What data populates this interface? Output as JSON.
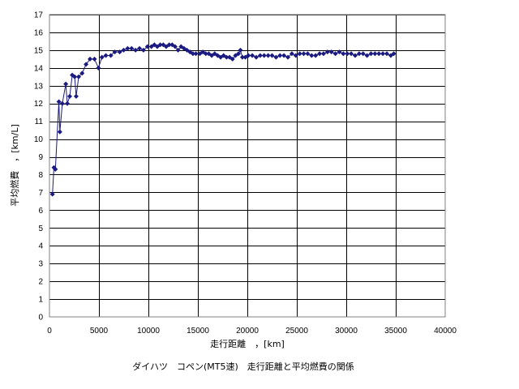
{
  "chart_data": {
    "type": "line",
    "title": "",
    "caption": "ダイハツ　コペン(MT5速)　走行距離と平均燃費の関係",
    "xlabel": "走行距離　，[km]",
    "ylabel": "平均燃費　，[km/L]",
    "xlim": [
      0,
      40000
    ],
    "ylim": [
      0,
      17
    ],
    "xticks": [
      0,
      5000,
      10000,
      15000,
      20000,
      25000,
      30000,
      35000,
      40000
    ],
    "yticks": [
      0,
      1,
      2,
      3,
      4,
      5,
      6,
      7,
      8,
      9,
      10,
      11,
      12,
      13,
      14,
      15,
      16,
      17
    ],
    "grid": true,
    "legend": "none",
    "marker": "diamond",
    "color": "#1a1a80",
    "series": [
      {
        "x": [
          300,
          450,
          600,
          950,
          1050,
          1300,
          1650,
          1800,
          2050,
          2300,
          2550,
          2700,
          2950,
          3300,
          3700,
          4100,
          4550,
          4950,
          5300,
          5700,
          6200,
          6600,
          7100,
          7500,
          7900,
          8300,
          8700,
          9100,
          9500,
          9900,
          10300,
          10600,
          10900,
          11200,
          11500,
          11800,
          12100,
          12400,
          12700,
          13000,
          13300,
          13600,
          13900,
          14200,
          14500,
          14800,
          15200,
          15500,
          15800,
          16100,
          16400,
          16700,
          17000,
          17300,
          17600,
          17900,
          18200,
          18500,
          18800,
          19100,
          19300,
          19500,
          19800,
          20100,
          20500,
          20900,
          21300,
          21700,
          22100,
          22500,
          22900,
          23300,
          23700,
          24100,
          24500,
          24900,
          25300,
          25700,
          26100,
          26500,
          26900,
          27300,
          27700,
          28100,
          28500,
          28900,
          29300,
          29700,
          30100,
          30500,
          30900,
          31300,
          31700,
          32100,
          32500,
          32900,
          33300,
          33700,
          34100,
          34500,
          34800
        ],
        "y": [
          6.9,
          8.4,
          8.3,
          12.1,
          10.4,
          12.0,
          13.1,
          12.0,
          12.4,
          13.6,
          13.5,
          12.4,
          13.5,
          13.7,
          14.2,
          14.5,
          14.5,
          14.0,
          14.6,
          14.7,
          14.7,
          14.9,
          14.9,
          15.0,
          15.1,
          15.1,
          15.0,
          15.1,
          15.0,
          15.2,
          15.2,
          15.3,
          15.2,
          15.3,
          15.3,
          15.2,
          15.3,
          15.3,
          15.2,
          15.0,
          15.2,
          15.1,
          15.0,
          14.9,
          14.8,
          14.8,
          14.8,
          14.9,
          14.8,
          14.8,
          14.7,
          14.8,
          14.7,
          14.6,
          14.7,
          14.6,
          14.6,
          14.5,
          14.7,
          14.8,
          15.0,
          14.6,
          14.6,
          14.7,
          14.7,
          14.6,
          14.7,
          14.7,
          14.7,
          14.7,
          14.6,
          14.7,
          14.7,
          14.6,
          14.8,
          14.7,
          14.8,
          14.8,
          14.8,
          14.7,
          14.7,
          14.8,
          14.8,
          14.9,
          14.9,
          14.8,
          14.9,
          14.8,
          14.8,
          14.8,
          14.7,
          14.8,
          14.8,
          14.7,
          14.8,
          14.8,
          14.8,
          14.8,
          14.8,
          14.7,
          14.8
        ]
      }
    ]
  }
}
